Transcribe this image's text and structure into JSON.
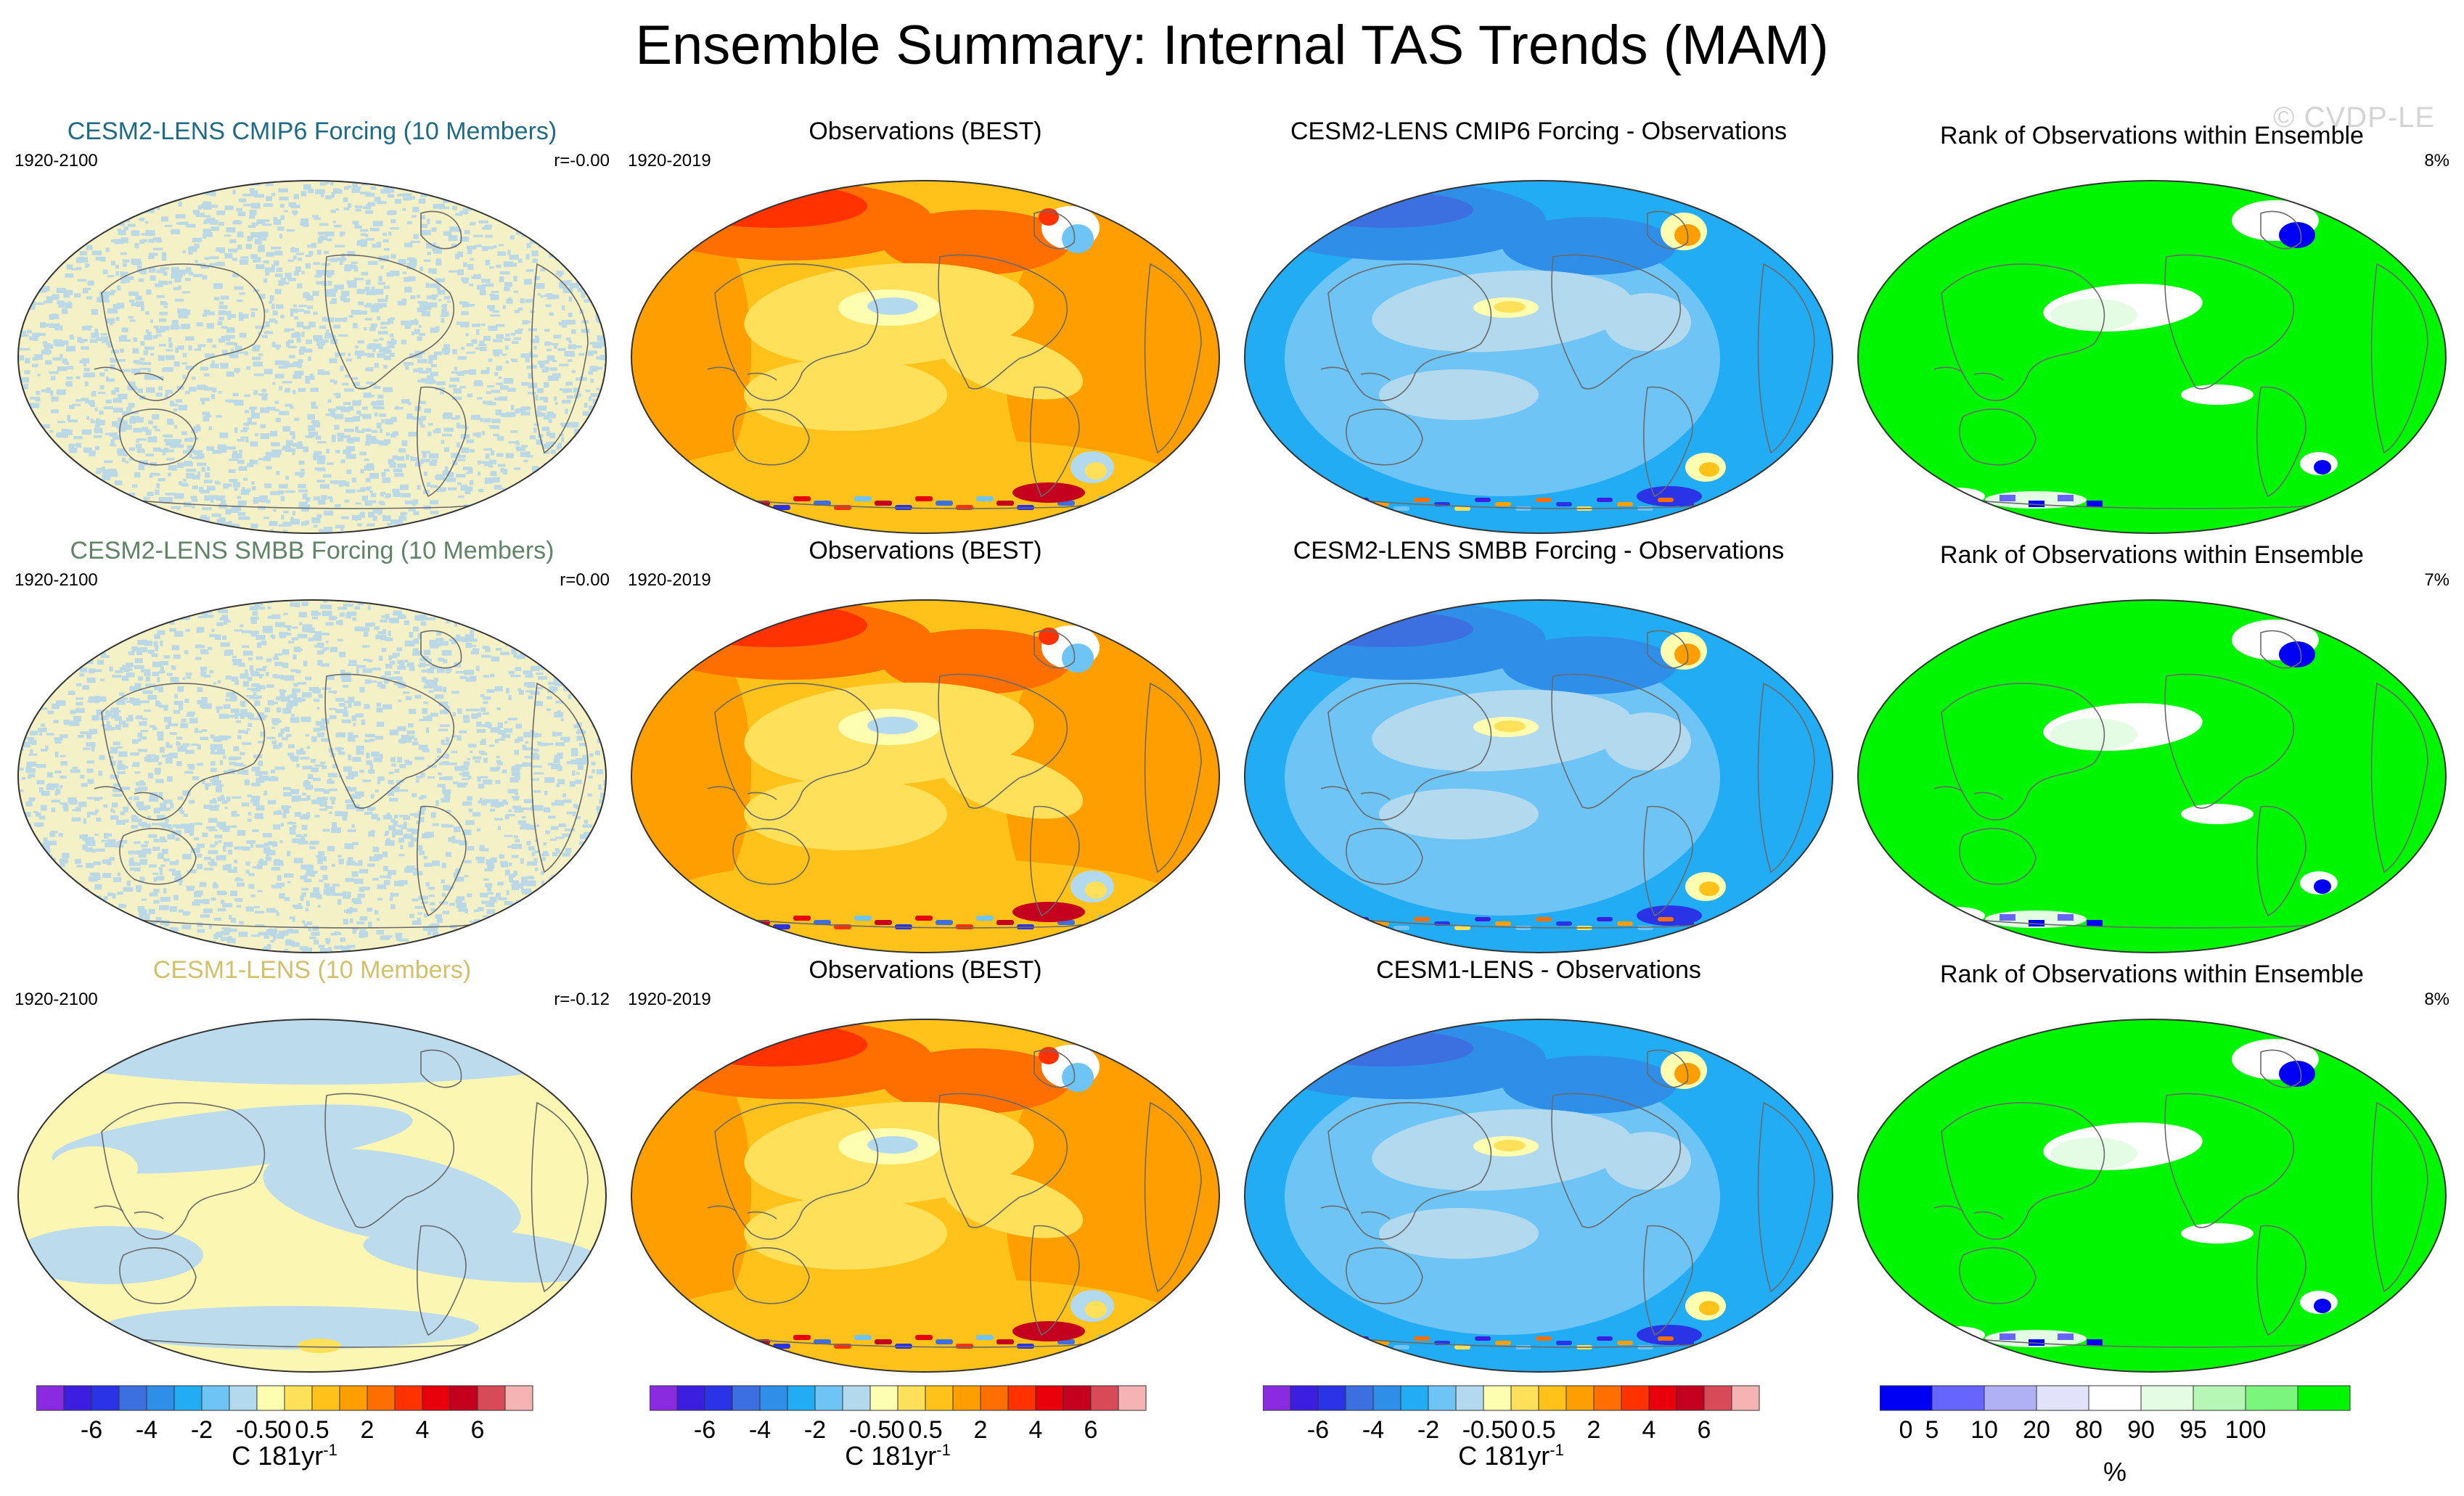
{
  "page": {
    "title": "Ensemble Summary: Internal TAS Trends (MAM)",
    "watermark": "© CVDP-LE"
  },
  "rows": [
    {
      "ensemble": {
        "title": "CESM2-LENS CMIP6 Forcing (10 Members)",
        "title_color": "#1f6b86",
        "period": "1920-2100",
        "corr": "r=-0.00",
        "pattern": "noise"
      },
      "obs": {
        "title": "Observations (BEST)",
        "period": "1920-2019"
      },
      "diff": {
        "title": "CESM2-LENS CMIP6 Forcing - Observations"
      },
      "rank": {
        "title": "Rank of Observations within Ensemble",
        "pct": "8%"
      }
    },
    {
      "ensemble": {
        "title": "CESM2-LENS SMBB Forcing (10 Members)",
        "title_color": "#5f8466",
        "period": "1920-2100",
        "corr": "r=0.00",
        "pattern": "noise"
      },
      "obs": {
        "title": "Observations (BEST)",
        "period": "1920-2019"
      },
      "diff": {
        "title": "CESM2-LENS SMBB Forcing - Observations"
      },
      "rank": {
        "title": "Rank of Observations within Ensemble",
        "pct": "7%"
      }
    },
    {
      "ensemble": {
        "title": "CESM1-LENS (10 Members)",
        "title_color": "#d2c06a",
        "period": "1920-2100",
        "corr": "r=-0.12",
        "pattern": "smooth"
      },
      "obs": {
        "title": "Observations (BEST)",
        "period": "1920-2019"
      },
      "diff": {
        "title": "CESM1-LENS - Observations"
      },
      "rank": {
        "title": "Rank of Observations within Ensemble",
        "pct": "8%"
      }
    }
  ],
  "colorbars": {
    "trend": {
      "colors": [
        "#8a2be2",
        "#3b1ee0",
        "#2a34e6",
        "#3c6fe0",
        "#2f8fe8",
        "#22acf4",
        "#6ec4f4",
        "#b2d9ee",
        "#fefeb0",
        "#ffe05a",
        "#ffc21a",
        "#ff9e00",
        "#ff6f00",
        "#ff3200",
        "#e8000a",
        "#c4001e",
        "#d84a58",
        "#f6b3b3"
      ],
      "labels": [
        "-6",
        "-4",
        "-2",
        "-0.5",
        "0",
        "0.5",
        "2",
        "4",
        "6"
      ],
      "label_boundaries": [
        2,
        4,
        6,
        8,
        9,
        10,
        12,
        14,
        16
      ],
      "units": "C 181yr",
      "units_sup": "-1"
    },
    "rank": {
      "colors": [
        "#0000f5",
        "#6666ff",
        "#b0b0f4",
        "#e2e2fb",
        "#ffffff",
        "#e4fbe4",
        "#b6f7b6",
        "#7cf57c",
        "#00f500"
      ],
      "labels": [
        "0",
        "5",
        "10",
        "20",
        "80",
        "90",
        "95",
        "100"
      ],
      "label_boundaries": [
        0.5,
        1,
        2,
        3,
        4,
        5,
        6,
        7
      ],
      "units": "%"
    }
  }
}
